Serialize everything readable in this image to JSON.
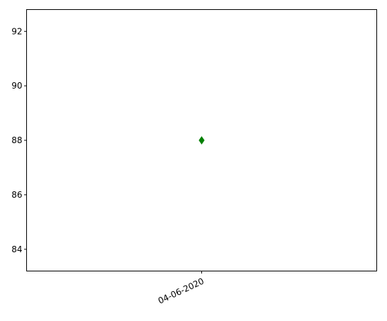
{
  "chart_data": {
    "type": "scatter",
    "title": "",
    "xlabel": "",
    "ylabel": "",
    "x_categories": [
      "04-06-2020"
    ],
    "points": [
      {
        "x": "04-06-2020",
        "y": 88
      }
    ],
    "y_ticks": [
      84,
      86,
      88,
      90,
      92
    ],
    "ylim": [
      83.2,
      92.8
    ],
    "grid": false,
    "marker": "thin-diamond",
    "marker_color": "#008000",
    "axis_color": "#000000",
    "background_color": "#ffffff"
  }
}
